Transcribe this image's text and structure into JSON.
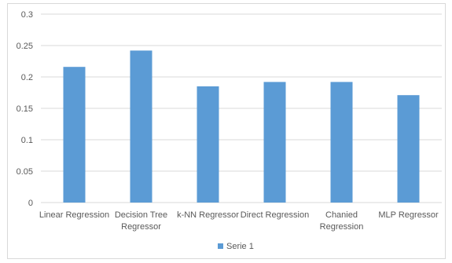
{
  "chart_data": {
    "type": "bar",
    "title": "",
    "xlabel": "",
    "ylabel": "",
    "categories": [
      [
        "Linear Regression"
      ],
      [
        "Decision Tree",
        "Regressor"
      ],
      [
        "k-NN Regressor"
      ],
      [
        "Direct Regression"
      ],
      [
        "Chanied",
        "Regression"
      ],
      [
        "MLP Regressor"
      ]
    ],
    "series": [
      {
        "name": "Serie 1",
        "color": "#5b9bd5",
        "values": [
          0.216,
          0.242,
          0.185,
          0.192,
          0.192,
          0.171
        ]
      }
    ],
    "ylim": [
      0,
      0.3
    ],
    "yticks": [
      "0",
      "0.05",
      "0.1",
      "0.15",
      "0.2",
      "0.25",
      "0.3"
    ],
    "grid": true,
    "gridline_color": "#d9d9d9",
    "legend_position": "bottom"
  }
}
